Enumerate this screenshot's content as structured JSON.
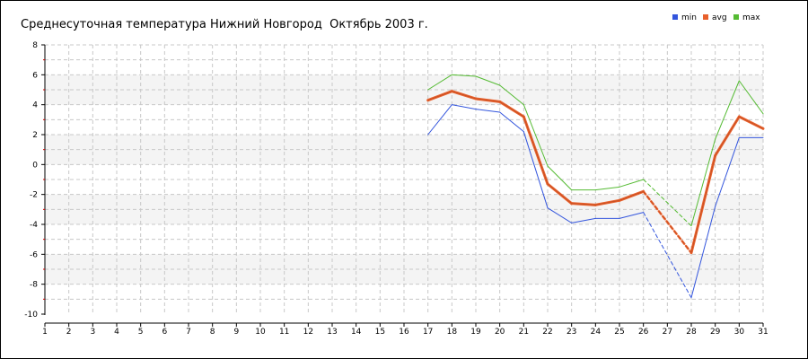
{
  "chart_data": {
    "type": "line",
    "title": "Среднесуточная температура Нижний Новгород  Октябрь 2003 г.",
    "xlabel": "",
    "ylabel": "",
    "x": [
      1,
      2,
      3,
      4,
      5,
      6,
      7,
      8,
      9,
      10,
      11,
      12,
      13,
      14,
      15,
      16,
      17,
      18,
      19,
      20,
      21,
      22,
      23,
      24,
      25,
      26,
      27,
      28,
      29,
      30,
      31
    ],
    "xlim": [
      1,
      31
    ],
    "ylim": [
      -10,
      8
    ],
    "yticks": [
      -10,
      -8,
      -6,
      -4,
      -2,
      0,
      2,
      4,
      6,
      8
    ],
    "y_tick_labels": [
      "-10",
      "-8",
      "-6",
      "-4",
      "-2",
      "0",
      "2",
      "4",
      "6",
      "8"
    ],
    "grid": true,
    "legend_position": "top-right",
    "series": [
      {
        "name": "min",
        "color": "#3355dd",
        "values": [
          null,
          null,
          null,
          null,
          null,
          null,
          null,
          null,
          null,
          null,
          null,
          null,
          null,
          null,
          null,
          null,
          2.0,
          4.0,
          3.7,
          3.5,
          2.2,
          -2.9,
          -3.9,
          -3.6,
          -3.6,
          -3.2,
          null,
          -8.9,
          -2.8,
          1.8,
          1.8
        ]
      },
      {
        "name": "avg",
        "color": "#e8602c",
        "values": [
          null,
          null,
          null,
          null,
          null,
          null,
          null,
          null,
          null,
          null,
          null,
          null,
          null,
          null,
          null,
          null,
          4.3,
          4.9,
          4.4,
          4.2,
          3.2,
          -1.3,
          -2.6,
          -2.7,
          -2.4,
          -1.8,
          null,
          -5.9,
          0.6,
          3.2,
          2.4
        ]
      },
      {
        "name": "max",
        "color": "#55bb33",
        "values": [
          null,
          null,
          null,
          null,
          null,
          null,
          null,
          null,
          null,
          null,
          null,
          null,
          null,
          null,
          null,
          null,
          5.0,
          6.0,
          5.9,
          5.3,
          4.0,
          -0.1,
          -1.7,
          -1.7,
          -1.5,
          -1.0,
          null,
          -4.1,
          1.7,
          5.6,
          3.4
        ]
      }
    ]
  }
}
